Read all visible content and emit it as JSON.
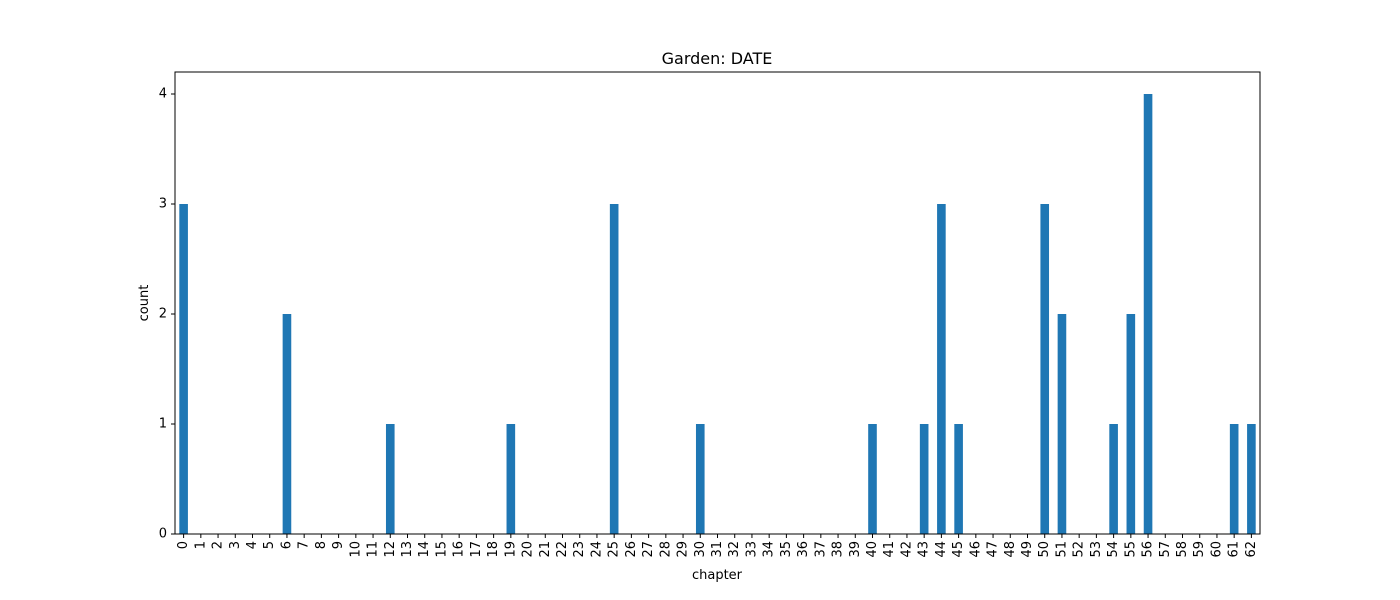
{
  "chart_data": {
    "type": "bar",
    "title": "Garden: DATE",
    "xlabel": "chapter",
    "ylabel": "count",
    "categories": [
      "0",
      "1",
      "2",
      "3",
      "4",
      "5",
      "6",
      "7",
      "8",
      "9",
      "10",
      "11",
      "12",
      "13",
      "14",
      "15",
      "16",
      "17",
      "18",
      "19",
      "20",
      "21",
      "22",
      "23",
      "24",
      "25",
      "26",
      "27",
      "28",
      "29",
      "30",
      "31",
      "32",
      "33",
      "34",
      "35",
      "36",
      "37",
      "38",
      "39",
      "40",
      "41",
      "42",
      "43",
      "44",
      "45",
      "46",
      "47",
      "48",
      "49",
      "50",
      "51",
      "52",
      "53",
      "54",
      "55",
      "56",
      "57",
      "58",
      "59",
      "60",
      "61",
      "62"
    ],
    "values": [
      3,
      0,
      0,
      0,
      0,
      0,
      2,
      0,
      0,
      0,
      0,
      0,
      1,
      0,
      0,
      0,
      0,
      0,
      0,
      1,
      0,
      0,
      0,
      0,
      0,
      3,
      0,
      0,
      0,
      0,
      1,
      0,
      0,
      0,
      0,
      0,
      0,
      0,
      0,
      0,
      1,
      0,
      0,
      1,
      3,
      1,
      0,
      0,
      0,
      0,
      3,
      2,
      0,
      0,
      1,
      2,
      4,
      0,
      0,
      0,
      0,
      1,
      1
    ],
    "ylim": [
      0,
      4.2
    ],
    "yticks": [
      0,
      1,
      2,
      3,
      4
    ],
    "bar_color": "#1f77b4",
    "grid": false,
    "legend": "none"
  }
}
